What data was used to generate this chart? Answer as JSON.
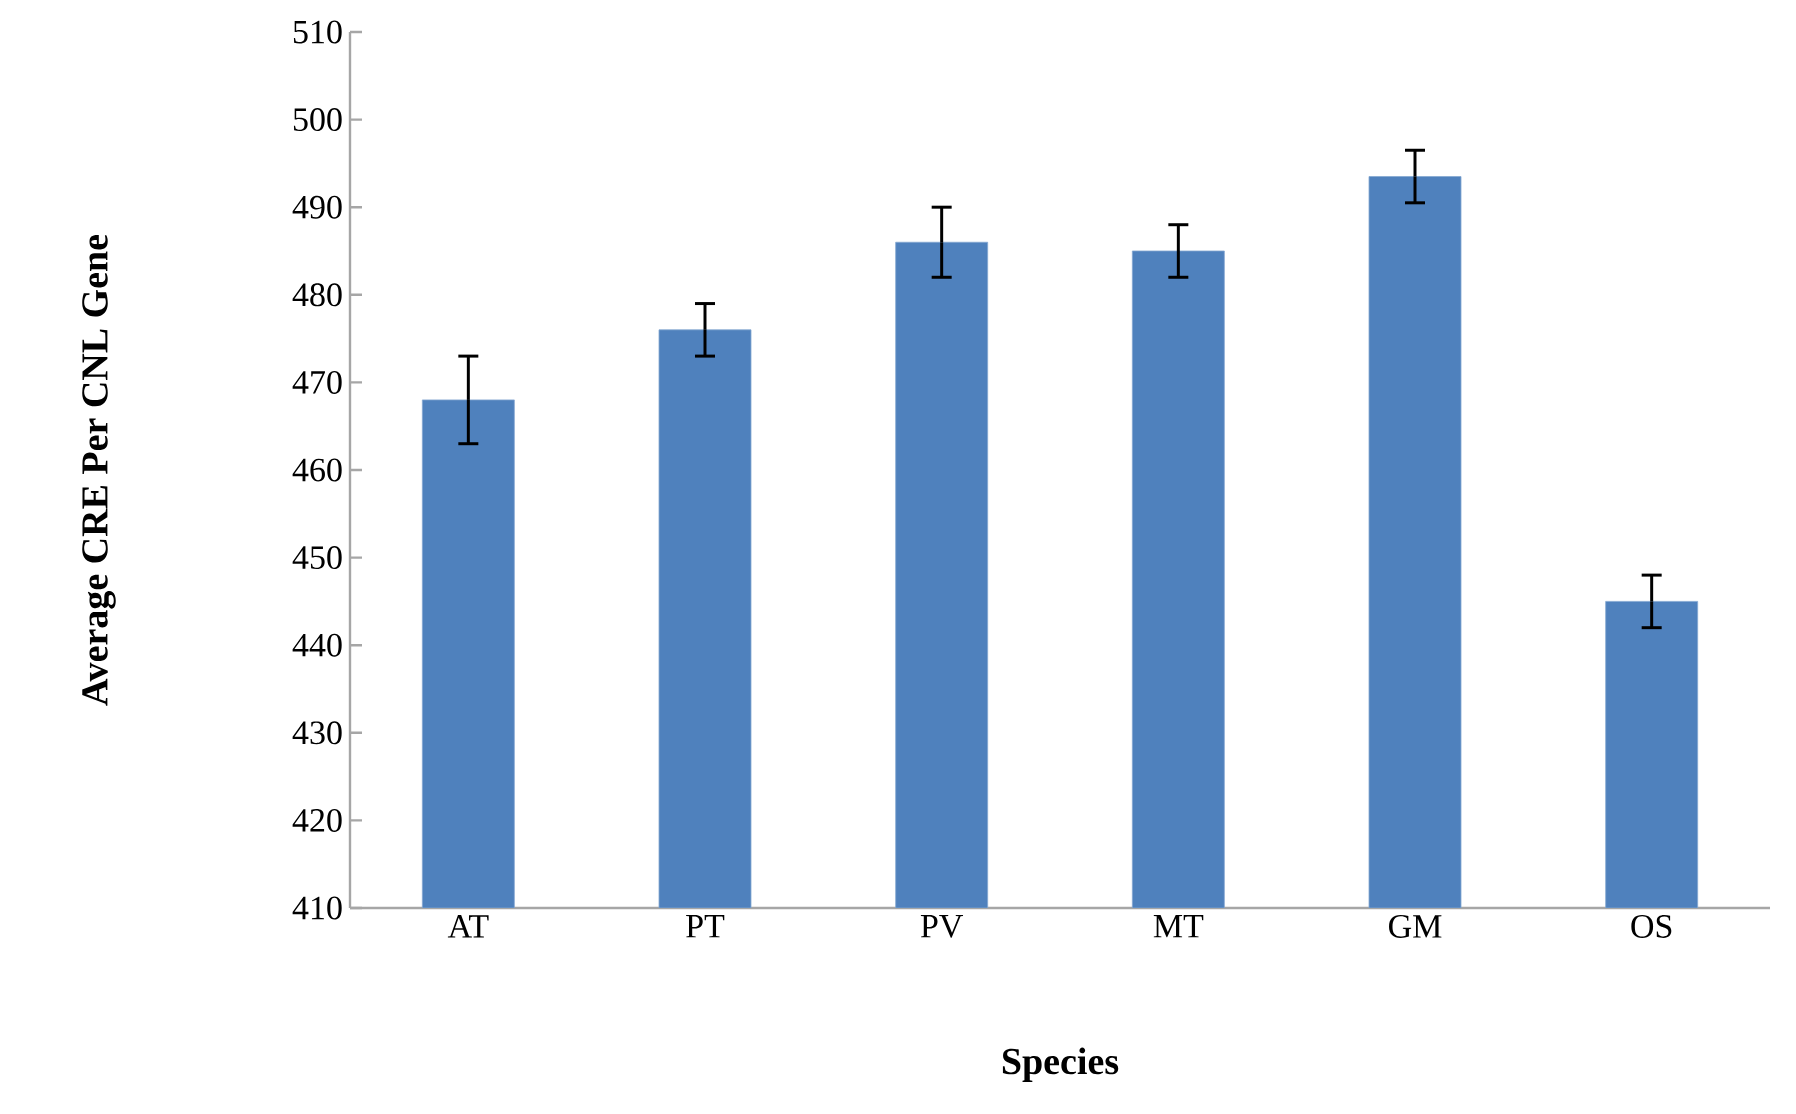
{
  "chart_data": {
    "type": "bar",
    "xlabel": "Species",
    "ylabel": "Average CRE Per CNL Gene",
    "categories": [
      "AT",
      "PT",
      "PV",
      "MT",
      "GM",
      "OS"
    ],
    "values": [
      468,
      476,
      486,
      485,
      493.5,
      445
    ],
    "errors": [
      5,
      3,
      4,
      3,
      3,
      3
    ],
    "color": "#4f81bd",
    "ylim": [
      410,
      510
    ],
    "yticks": [
      410,
      420,
      430,
      440,
      450,
      460,
      470,
      480,
      490,
      500,
      510
    ],
    "grid": false
  }
}
